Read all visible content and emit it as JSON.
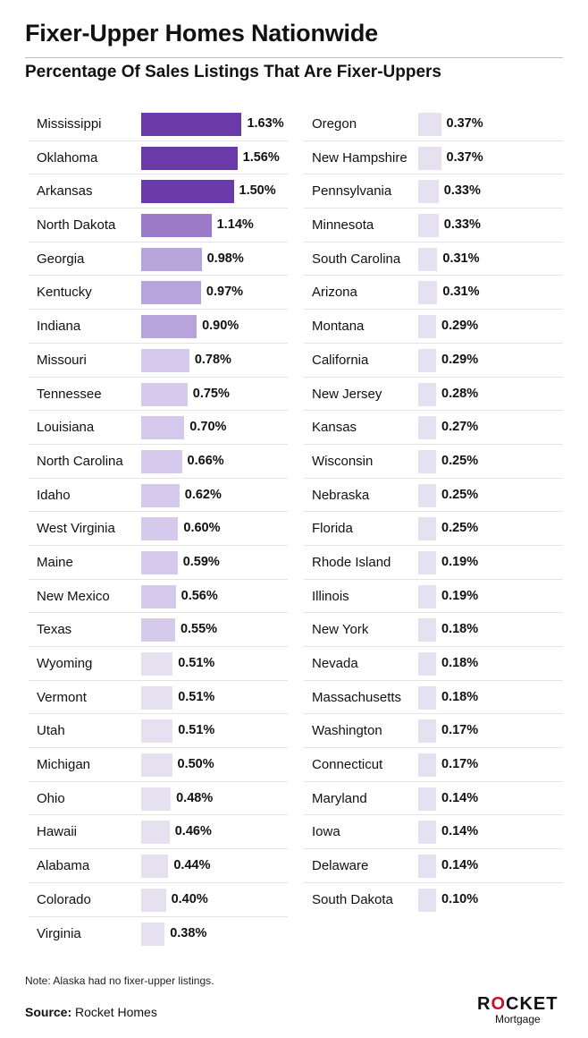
{
  "header": {
    "title": "Fixer-Upper Homes Nationwide",
    "subtitle": "Percentage Of Sales Listings That Are Fixer-Uppers"
  },
  "chart_data": {
    "type": "bar",
    "orientation": "horizontal",
    "unit": "%",
    "colors": {
      "darkest": "#6a3aa8",
      "dark": "#9b7bc8",
      "medium": "#b8a3da",
      "light": "#d5caeb",
      "lightest": "#e6e1f1"
    },
    "columns": [
      {
        "items": [
          {
            "label": "Mississippi",
            "value": 1.63,
            "value_label": "1.63%"
          },
          {
            "label": "Oklahoma",
            "value": 1.56,
            "value_label": "1.56%"
          },
          {
            "label": "Arkansas",
            "value": 1.5,
            "value_label": "1.50%"
          },
          {
            "label": "North Dakota",
            "value": 1.14,
            "value_label": "1.14%"
          },
          {
            "label": "Georgia",
            "value": 0.98,
            "value_label": "0.98%"
          },
          {
            "label": "Kentucky",
            "value": 0.97,
            "value_label": "0.97%"
          },
          {
            "label": "Indiana",
            "value": 0.9,
            "value_label": "0.90%"
          },
          {
            "label": "Missouri",
            "value": 0.78,
            "value_label": "0.78%"
          },
          {
            "label": "Tennessee",
            "value": 0.75,
            "value_label": "0.75%"
          },
          {
            "label": "Louisiana",
            "value": 0.7,
            "value_label": "0.70%"
          },
          {
            "label": "North Carolina",
            "value": 0.66,
            "value_label": "0.66%"
          },
          {
            "label": "Idaho",
            "value": 0.62,
            "value_label": "0.62%"
          },
          {
            "label": "West Virginia",
            "value": 0.6,
            "value_label": "0.60%"
          },
          {
            "label": "Maine",
            "value": 0.59,
            "value_label": "0.59%"
          },
          {
            "label": "New Mexico",
            "value": 0.56,
            "value_label": "0.56%"
          },
          {
            "label": "Texas",
            "value": 0.55,
            "value_label": "0.55%"
          },
          {
            "label": "Wyoming",
            "value": 0.51,
            "value_label": "0.51%"
          },
          {
            "label": "Vermont",
            "value": 0.51,
            "value_label": "0.51%"
          },
          {
            "label": "Utah",
            "value": 0.51,
            "value_label": "0.51%"
          },
          {
            "label": "Michigan",
            "value": 0.5,
            "value_label": "0.50%"
          },
          {
            "label": "Ohio",
            "value": 0.48,
            "value_label": "0.48%"
          },
          {
            "label": "Hawaii",
            "value": 0.46,
            "value_label": "0.46%"
          },
          {
            "label": "Alabama",
            "value": 0.44,
            "value_label": "0.44%"
          },
          {
            "label": "Colorado",
            "value": 0.4,
            "value_label": "0.40%"
          },
          {
            "label": "Virginia",
            "value": 0.38,
            "value_label": "0.38%"
          }
        ]
      },
      {
        "items": [
          {
            "label": "Oregon",
            "value": 0.37,
            "value_label": "0.37%"
          },
          {
            "label": "New Hampshire",
            "value": 0.37,
            "value_label": "0.37%"
          },
          {
            "label": "Pennsylvania",
            "value": 0.33,
            "value_label": "0.33%"
          },
          {
            "label": "Minnesota",
            "value": 0.33,
            "value_label": "0.33%"
          },
          {
            "label": "South Carolina",
            "value": 0.31,
            "value_label": "0.31%"
          },
          {
            "label": "Arizona",
            "value": 0.31,
            "value_label": "0.31%"
          },
          {
            "label": "Montana",
            "value": 0.29,
            "value_label": "0.29%"
          },
          {
            "label": "California",
            "value": 0.29,
            "value_label": "0.29%"
          },
          {
            "label": "New Jersey",
            "value": 0.28,
            "value_label": "0.28%"
          },
          {
            "label": "Kansas",
            "value": 0.27,
            "value_label": "0.27%"
          },
          {
            "label": "Wisconsin",
            "value": 0.25,
            "value_label": "0.25%"
          },
          {
            "label": "Nebraska",
            "value": 0.25,
            "value_label": "0.25%"
          },
          {
            "label": "Florida",
            "value": 0.25,
            "value_label": "0.25%"
          },
          {
            "label": "Rhode Island",
            "value": 0.19,
            "value_label": "0.19%"
          },
          {
            "label": "Illinois",
            "value": 0.19,
            "value_label": "0.19%"
          },
          {
            "label": "New York",
            "value": 0.18,
            "value_label": "0.18%"
          },
          {
            "label": "Nevada",
            "value": 0.18,
            "value_label": "0.18%"
          },
          {
            "label": "Massachusetts",
            "value": 0.18,
            "value_label": "0.18%"
          },
          {
            "label": "Washington",
            "value": 0.17,
            "value_label": "0.17%"
          },
          {
            "label": "Connecticut",
            "value": 0.17,
            "value_label": "0.17%"
          },
          {
            "label": "Maryland",
            "value": 0.14,
            "value_label": "0.14%"
          },
          {
            "label": "Iowa",
            "value": 0.14,
            "value_label": "0.14%"
          },
          {
            "label": "Delaware",
            "value": 0.14,
            "value_label": "0.14%"
          },
          {
            "label": "South Dakota",
            "value": 0.1,
            "value_label": "0.10%"
          }
        ]
      }
    ]
  },
  "footer": {
    "note": "Note: Alaska had no fixer-upper listings.",
    "source_label": "Source:",
    "source_value": "Rocket Homes",
    "logo_text": "ROCKET",
    "logo_subtext": "Mortgage"
  }
}
